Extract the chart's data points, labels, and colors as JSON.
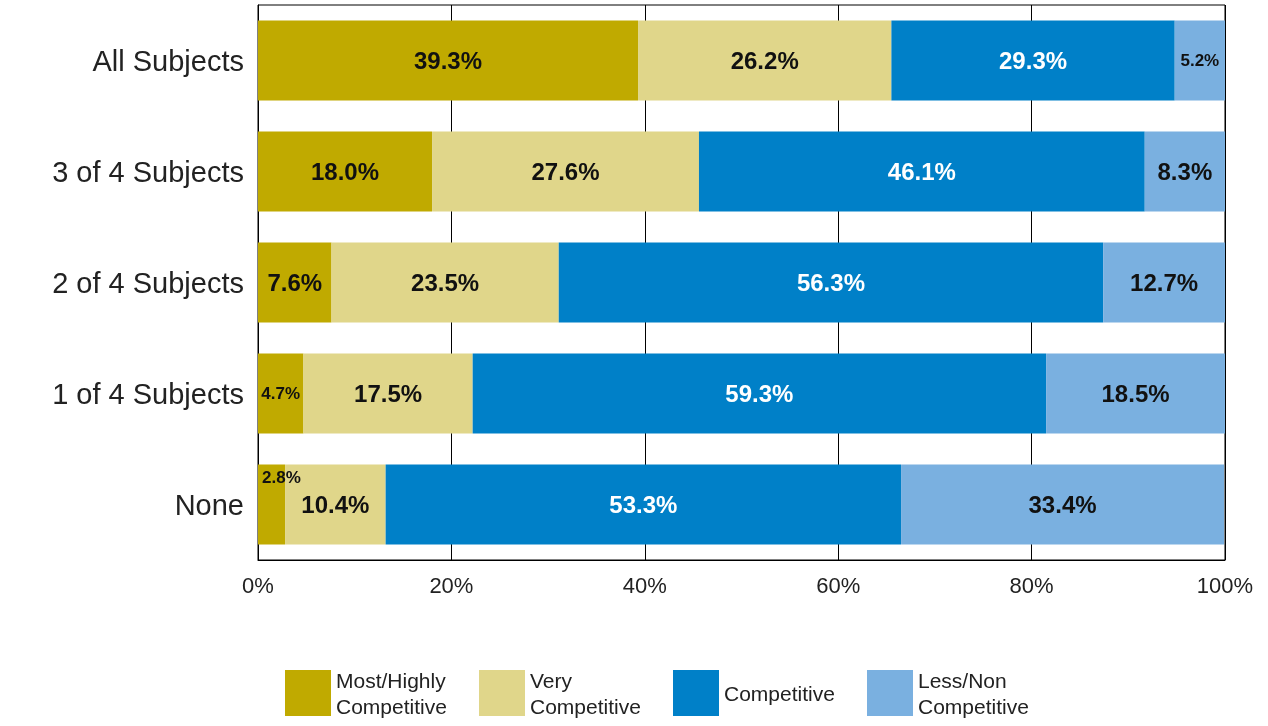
{
  "chart_data": {
    "type": "bar",
    "orientation": "horizontal",
    "stacked": true,
    "categories": [
      "All Subjects",
      "3 of 4 Subjects",
      "2 of 4 Subjects",
      "1 of 4 Subjects",
      "None"
    ],
    "series": [
      {
        "name": "Most/Highly Competitive",
        "color": "#c0aa00",
        "values": [
          39.3,
          18.0,
          7.6,
          4.7,
          2.8
        ],
        "value_labels": [
          "39.3%",
          "18.0%",
          "7.6%",
          "4.7%",
          "2.8%"
        ]
      },
      {
        "name": "Very Competitive",
        "color": "#e0d68a",
        "values": [
          26.2,
          27.6,
          23.5,
          17.5,
          10.4
        ],
        "value_labels": [
          "26.2%",
          "27.6%",
          "23.5%",
          "17.5%",
          "10.4%"
        ]
      },
      {
        "name": "Competitive",
        "color": "#0080c8",
        "values": [
          29.3,
          46.1,
          56.3,
          59.3,
          53.3
        ],
        "value_labels": [
          "29.3%",
          "46.1%",
          "56.3%",
          "59.3%",
          "53.3%"
        ]
      },
      {
        "name": "Less/Non Competitive",
        "color": "#7ab0e0",
        "values": [
          5.2,
          8.3,
          12.7,
          18.5,
          33.4
        ],
        "value_labels": [
          "5.2%",
          "8.3%",
          "12.7%",
          "18.5%",
          "33.4%"
        ]
      }
    ],
    "xlim": [
      0,
      100
    ],
    "xticks": [
      {
        "value": 0,
        "label": "0%"
      },
      {
        "value": 20,
        "label": "20%"
      },
      {
        "value": 40,
        "label": "40%"
      },
      {
        "value": 60,
        "label": "60%"
      },
      {
        "value": 80,
        "label": "80%"
      },
      {
        "value": 100,
        "label": "100%"
      }
    ],
    "grid": "x",
    "legend": "bottom"
  }
}
